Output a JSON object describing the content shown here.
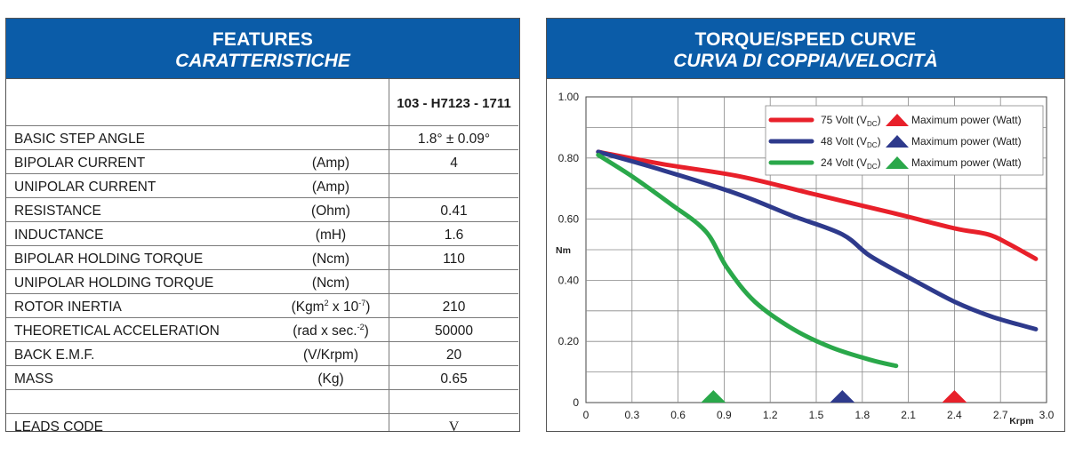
{
  "features": {
    "title": "FEATURES",
    "subtitle": "CARATTERISTICHE",
    "model": "103 - H7123 - 1711",
    "rows": [
      {
        "label": "BASIC STEP ANGLE",
        "unit": "",
        "value": "1.8° ± 0.09°"
      },
      {
        "label": "BIPOLAR CURRENT",
        "unit": "(Amp)",
        "value": "4"
      },
      {
        "label": "UNIPOLAR CURRENT",
        "unit": "(Amp)",
        "value": ""
      },
      {
        "label": "RESISTANCE",
        "unit": "(Ohm)",
        "value": "0.41"
      },
      {
        "label": "INDUCTANCE",
        "unit": "(mH)",
        "value": "1.6"
      },
      {
        "label": "BIPOLAR HOLDING TORQUE",
        "unit": "(Ncm)",
        "value": "110"
      },
      {
        "label": "UNIPOLAR HOLDING TORQUE",
        "unit": "(Ncm)",
        "value": ""
      },
      {
        "label": "ROTOR INERTIA",
        "unit_base": "(Kgm",
        "unit_sup1": "2",
        "unit_mid": " x 10",
        "unit_sup2": "-7",
        "unit_end": ")",
        "value": "210"
      },
      {
        "label": "THEORETICAL ACCELERATION",
        "unit_base": "(rad x sec.",
        "unit_sup1": "-2",
        "unit_end": ")",
        "value": "50000"
      },
      {
        "label": "BACK E.M.F.",
        "unit": "(V/Krpm)",
        "value": "20"
      },
      {
        "label": "MASS",
        "unit": "(Kg)",
        "value": "0.65"
      },
      {
        "label": "",
        "unit": "",
        "value": ""
      },
      {
        "label": "LEADS CODE",
        "unit": "",
        "value": "V"
      }
    ]
  },
  "torque_chart": {
    "title": "TORQUE/SPEED CURVE",
    "subtitle": "CURVA DI COPPIA/VELOCITÀ"
  },
  "chart_data": {
    "type": "line",
    "title": "TORQUE/SPEED CURVE",
    "subtitle": "CURVA DI COPPIA/VELOCITÀ",
    "ylabel": "Nm",
    "xlabel_unit": "Krpm",
    "xlim": [
      0,
      3.0
    ],
    "ylim": [
      0,
      1.0
    ],
    "x_ticks": [
      "0",
      "0.3",
      "0.6",
      "0.9",
      "1.2",
      "1.5",
      "1.8",
      "2.1",
      "2.4",
      "2.7",
      "3.0"
    ],
    "y_ticks": [
      "0",
      "0.20",
      "0.40",
      "0.60",
      "0.80",
      "1.00"
    ],
    "grid": true,
    "legend_position": "top-right",
    "max_power_label": "Maximum power (Watt)",
    "series": [
      {
        "name_main": "75 Volt (V",
        "name_sub": "DC",
        "name_end": ")",
        "color": "#e8202a",
        "points": [
          [
            0.08,
            0.82
          ],
          [
            0.5,
            0.78
          ],
          [
            1.0,
            0.74
          ],
          [
            1.5,
            0.68
          ],
          [
            2.0,
            0.62
          ],
          [
            2.4,
            0.57
          ],
          [
            2.62,
            0.55
          ],
          [
            2.75,
            0.52
          ],
          [
            2.93,
            0.47
          ]
        ],
        "max_power_x": 2.4
      },
      {
        "name_main": "48 Volt (V",
        "name_sub": "DC",
        "name_end": ")",
        "color": "#2e3a8c",
        "points": [
          [
            0.08,
            0.82
          ],
          [
            0.5,
            0.76
          ],
          [
            1.0,
            0.68
          ],
          [
            1.35,
            0.61
          ],
          [
            1.67,
            0.55
          ],
          [
            1.85,
            0.48
          ],
          [
            2.1,
            0.41
          ],
          [
            2.4,
            0.33
          ],
          [
            2.65,
            0.28
          ],
          [
            2.93,
            0.24
          ]
        ],
        "max_power_x": 1.67
      },
      {
        "name_main": "24 Volt (V",
        "name_sub": "DC",
        "name_end": ")",
        "color": "#2aa84a",
        "points": [
          [
            0.08,
            0.81
          ],
          [
            0.3,
            0.74
          ],
          [
            0.55,
            0.65
          ],
          [
            0.78,
            0.56
          ],
          [
            0.92,
            0.44
          ],
          [
            1.1,
            0.33
          ],
          [
            1.35,
            0.24
          ],
          [
            1.6,
            0.18
          ],
          [
            1.85,
            0.14
          ],
          [
            2.02,
            0.12
          ]
        ],
        "max_power_x": 0.83
      }
    ]
  }
}
